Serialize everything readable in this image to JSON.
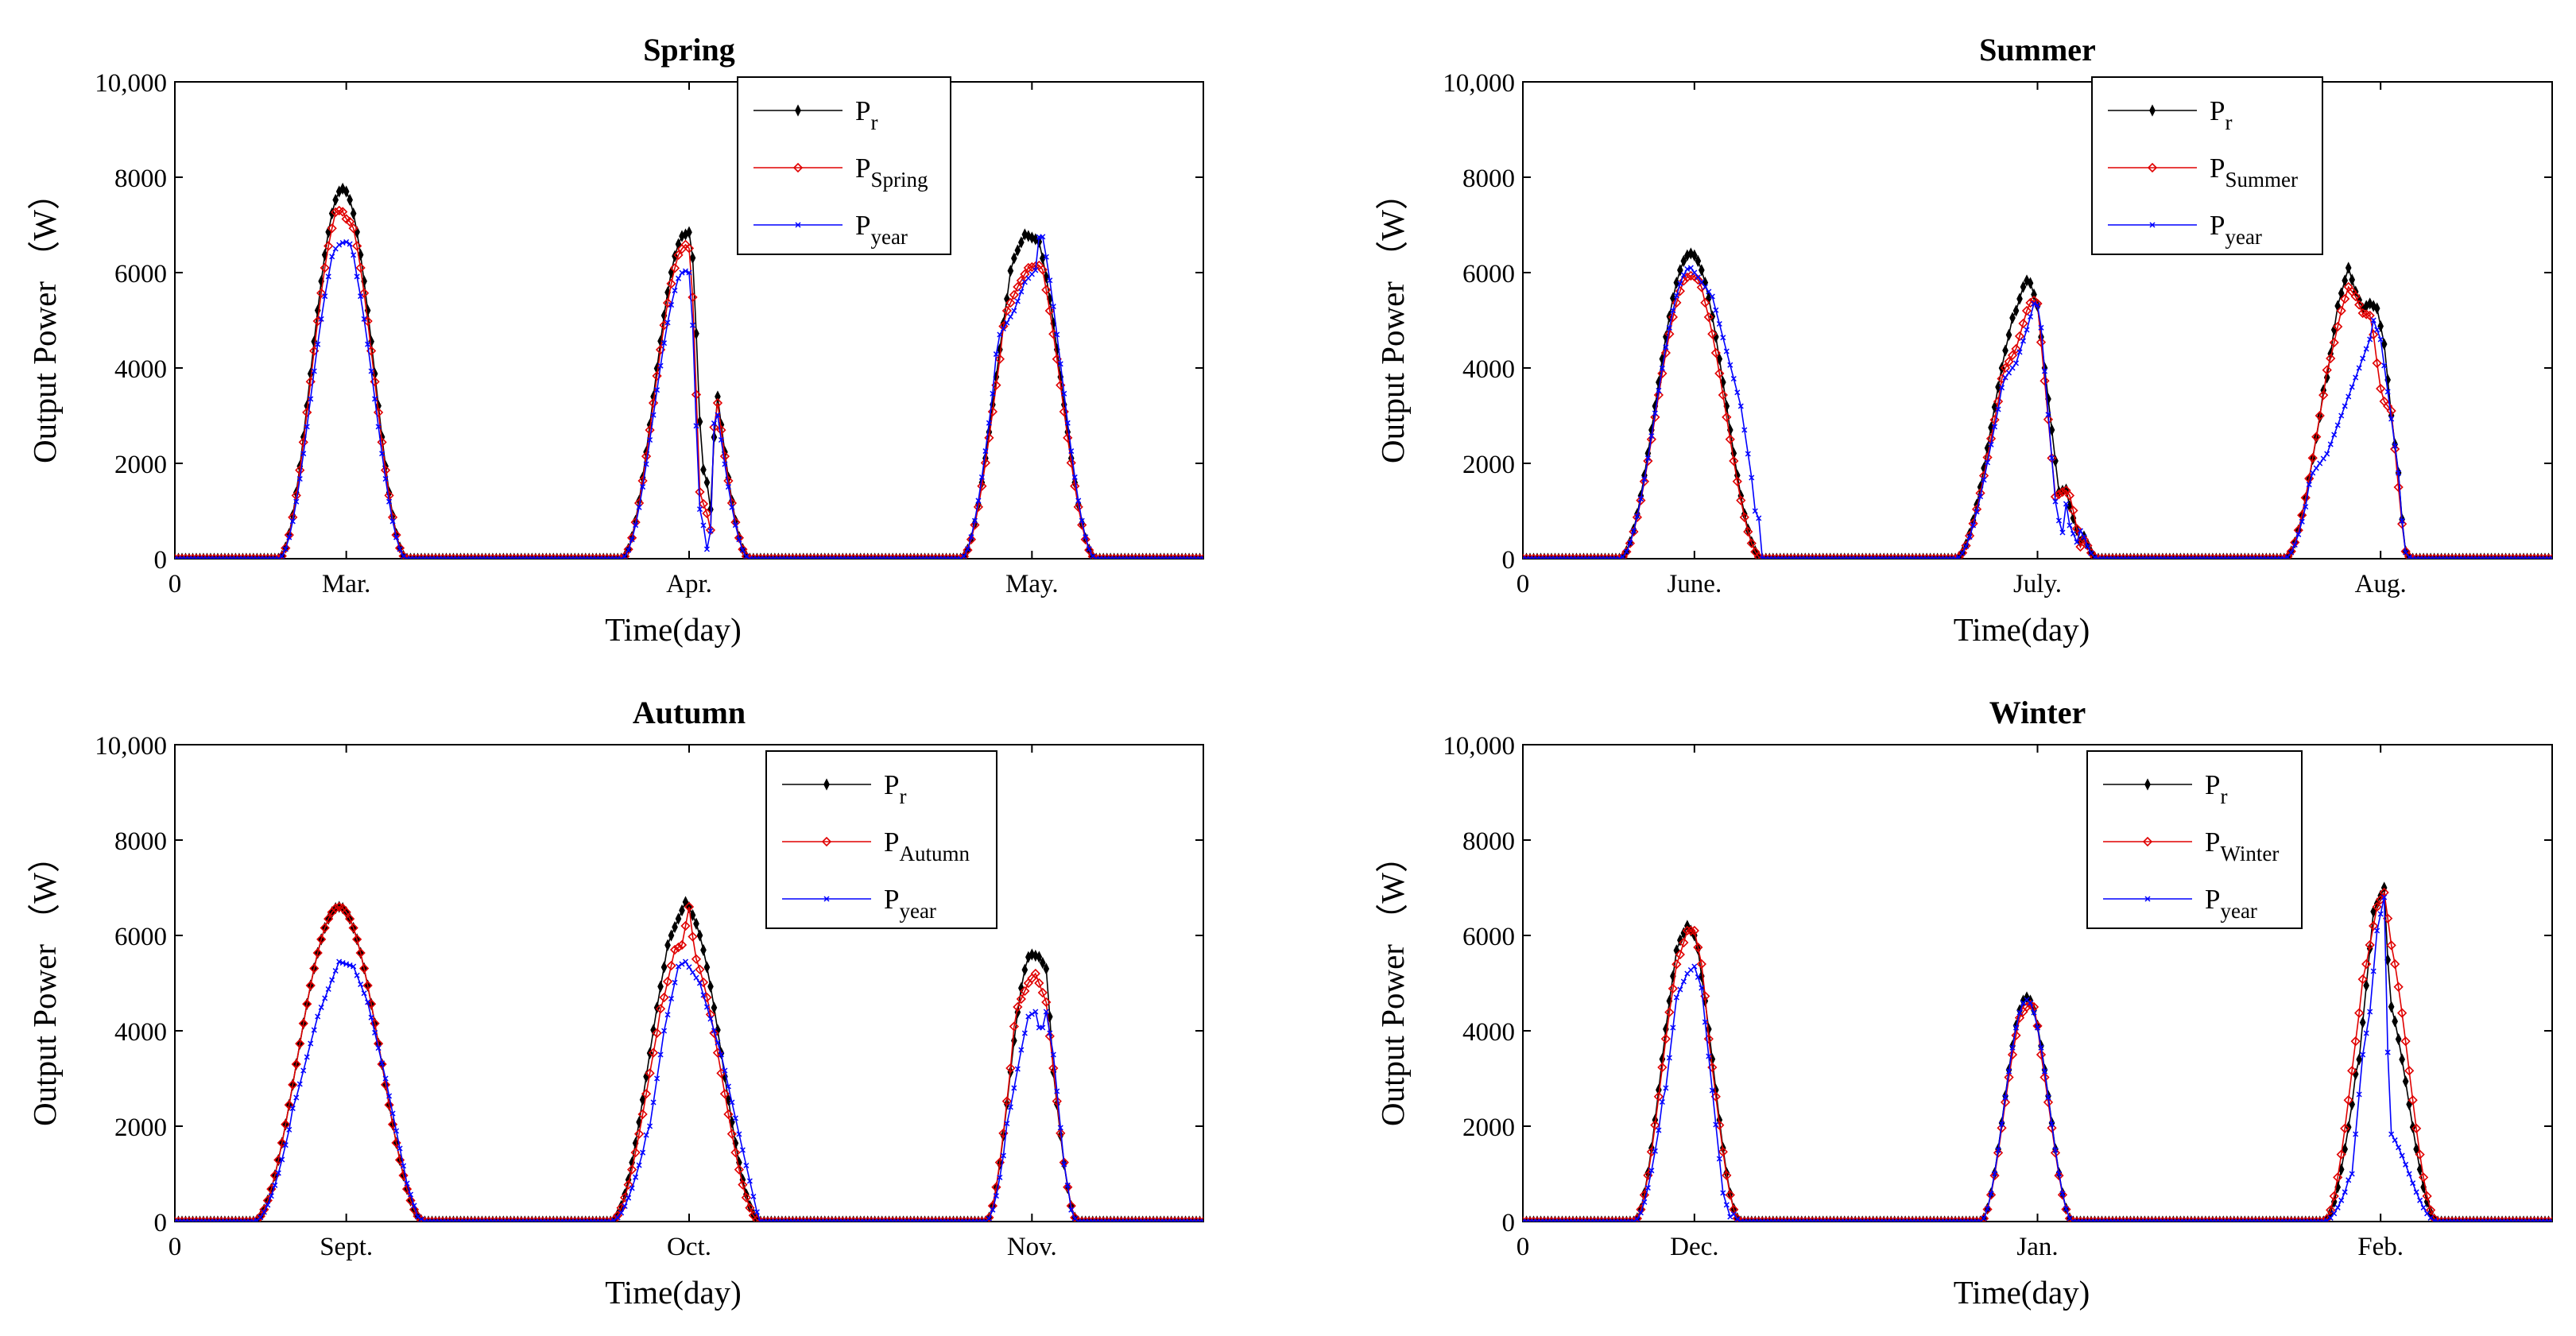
{
  "colors": {
    "pr": "#000000",
    "season": "#e00000",
    "year": "#0000ff"
  },
  "chart_data": [
    {
      "type": "line",
      "title": "Spring",
      "xlabel": "Time(day)",
      "ylabel": "Output Power （W）",
      "xlim": [
        0,
        288
      ],
      "ylim": [
        0,
        10000
      ],
      "yticks": [
        "0",
        "2000",
        "4000",
        "6000",
        "8000",
        "10,000"
      ],
      "xticks": [
        {
          "label": "0",
          "x": 0
        },
        {
          "label": "Mar.",
          "x": 48
        },
        {
          "label": "Apr.",
          "x": 144
        },
        {
          "label": "May.",
          "x": 240
        }
      ],
      "legend_position": "top-center",
      "legend": [
        {
          "main": "P",
          "sub": "r",
          "key": "pr"
        },
        {
          "main": "P",
          "sub": "Spring",
          "key": "season"
        },
        {
          "main": "P",
          "sub": "year",
          "key": "year"
        }
      ],
      "days": [
        {
          "center": 47,
          "width": 36,
          "pr": [
            [
              -1,
              7700
            ]
          ],
          "season": [
            [
              -1.5,
              7300
            ],
            [
              -0.5,
              7300
            ],
            [
              0.5,
              7250
            ],
            [
              1.5,
              7000
            ]
          ],
          "year": [
            [
              -2,
              6500
            ],
            [
              -0.8,
              6600
            ],
            [
              0.8,
              6650
            ],
            [
              2,
              6600
            ]
          ]
        },
        {
          "center": 143,
          "width": 36,
          "pr": [
            [
              0,
              6800
            ],
            [
              0.9,
              6900
            ],
            [
              2.2,
              6200
            ],
            [
              4.5,
              1950
            ],
            [
              5.4,
              1800
            ],
            [
              6.3,
              1500
            ],
            [
              7.2,
              900
            ]
          ],
          "season": [
            [
              -0.8,
              6500
            ],
            [
              0.6,
              6650
            ],
            [
              1.6,
              6300
            ],
            [
              4.0,
              1400
            ],
            [
              5.0,
              1150
            ],
            [
              6.0,
              950
            ],
            [
              7.0,
              600
            ]
          ],
          "year": [
            [
              -0.8,
              6000
            ],
            [
              0.5,
              6050
            ],
            [
              1.5,
              5950
            ],
            [
              3.8,
              1100
            ],
            [
              4.8,
              800
            ],
            [
              6.0,
              200
            ],
            [
              6.8,
              50
            ]
          ]
        },
        {
          "center": 239,
          "width": 38,
          "pr": [
            [
              -4,
              6300
            ],
            [
              -1,
              6800
            ],
            [
              2,
              6700
            ]
          ],
          "season": [
            [
              -6,
              5200
            ],
            [
              -3,
              5700
            ],
            [
              0,
              6100
            ],
            [
              3,
              6150
            ]
          ],
          "year": [
            [
              -8,
              4700
            ],
            [
              -6,
              4950
            ],
            [
              -4,
              5200
            ],
            [
              -1,
              5800
            ],
            [
              2,
              6050
            ]
          ]
        }
      ]
    },
    {
      "type": "line",
      "title": "Summer",
      "xlabel": "Time(day)",
      "ylabel": "Output Power （W）",
      "xlim": [
        0,
        288
      ],
      "ylim": [
        0,
        10000
      ],
      "yticks": [
        "0",
        "2000",
        "4000",
        "6000",
        "8000",
        "10,000"
      ],
      "xticks": [
        {
          "label": "0",
          "x": 0
        },
        {
          "label": "June.",
          "x": 48
        },
        {
          "label": "July.",
          "x": 144
        },
        {
          "label": "Aug.",
          "x": 240
        }
      ],
      "legend_position": "top-right",
      "legend": [
        {
          "main": "P",
          "sub": "r",
          "key": "pr"
        },
        {
          "main": "P",
          "sub": "Summer",
          "key": "season"
        },
        {
          "main": "P",
          "sub": "year",
          "key": "year"
        }
      ],
      "days": [
        {
          "center": 47,
          "width": 40,
          "pr": [
            [
              0,
              6400
            ]
          ],
          "season": [
            [
              -1,
              5900
            ],
            [
              0.5,
              5950
            ],
            [
              2,
              5850
            ]
          ],
          "year": [
            [
              0,
              6100
            ],
            [
              6,
              5500
            ],
            [
              14,
              3200
            ],
            [
              17,
              1700
            ],
            [
              18,
              1000
            ],
            [
              20,
              700
            ],
            [
              23,
              350
            ]
          ]
        },
        {
          "center": 141,
          "width": 40,
          "pr": [
            [
              -3,
              5200
            ],
            [
              -1,
              5700
            ],
            [
              0.5,
              5900
            ],
            [
              3,
              5300
            ],
            [
              9,
              1400
            ],
            [
              11,
              1450
            ],
            [
              12,
              1100
            ],
            [
              15,
              350
            ]
          ],
          "season": [
            [
              -6,
              4000
            ],
            [
              -3,
              4400
            ],
            [
              0,
              5200
            ],
            [
              1.5,
              5450
            ],
            [
              3,
              5350
            ],
            [
              8,
              1300
            ],
            [
              10,
              1400
            ],
            [
              11.5,
              1450
            ],
            [
              12.5,
              1200
            ],
            [
              15,
              250
            ]
          ],
          "year": [
            [
              -6,
              3800
            ],
            [
              -3,
              4100
            ],
            [
              0,
              4800
            ],
            [
              2,
              5350
            ],
            [
              3.5,
              5300
            ],
            [
              8,
              1200
            ],
            [
              9,
              800
            ],
            [
              10,
              550
            ],
            [
              11,
              1150
            ],
            [
              12,
              700
            ],
            [
              14,
              350
            ]
          ]
        },
        {
          "center": 231,
          "width": 36,
          "pr": [
            [
              -6,
              3800
            ],
            [
              -3,
              5300
            ],
            [
              0,
              6100
            ],
            [
              2,
              5600
            ],
            [
              4,
              5250
            ],
            [
              6,
              5350
            ],
            [
              8,
              5250
            ],
            [
              10,
              4500
            ],
            [
              12,
              3000
            ],
            [
              14,
              1800
            ]
          ],
          "season": [
            [
              -5,
              4200
            ],
            [
              -2,
              5200
            ],
            [
              0,
              5700
            ],
            [
              2,
              5500
            ],
            [
              4,
              5150
            ],
            [
              6,
              5100
            ],
            [
              7.5,
              4500
            ],
            [
              8.5,
              3700
            ],
            [
              10,
              3300
            ],
            [
              12,
              3100
            ],
            [
              14,
              1500
            ]
          ],
          "year": [
            [
              -10,
              1800
            ],
            [
              -6,
              2200
            ],
            [
              -3,
              2800
            ],
            [
              -1,
              3200
            ],
            [
              2,
              3800
            ],
            [
              4,
              4200
            ],
            [
              6,
              4600
            ],
            [
              7,
              5000
            ],
            [
              9,
              4600
            ],
            [
              11,
              3500
            ],
            [
              14,
              1800
            ]
          ]
        }
      ]
    },
    {
      "type": "line",
      "title": "Autumn",
      "xlabel": "Time(day)",
      "ylabel": "Output Power （W）",
      "xlim": [
        0,
        288
      ],
      "ylim": [
        0,
        10000
      ],
      "yticks": [
        "0",
        "2000",
        "4000",
        "6000",
        "8000",
        "10,000"
      ],
      "xticks": [
        {
          "label": "0",
          "x": 0
        },
        {
          "label": "Sept.",
          "x": 48
        },
        {
          "label": "Oct.",
          "x": 144
        },
        {
          "label": "Nov.",
          "x": 240
        }
      ],
      "legend_position": "top-right",
      "legend": [
        {
          "main": "P",
          "sub": "r",
          "key": "pr"
        },
        {
          "main": "P",
          "sub": "Autumn",
          "key": "season"
        },
        {
          "main": "P",
          "sub": "year",
          "key": "year"
        }
      ],
      "days": [
        {
          "center": 46,
          "width": 48,
          "pr": [
            [
              0,
              6600
            ]
          ],
          "season": [
            [
              0,
              6600
            ]
          ],
          "year": [
            [
              -12,
              2600
            ],
            [
              -6,
              4300
            ],
            [
              0,
              5450
            ],
            [
              4,
              5350
            ],
            [
              8,
              4600
            ],
            [
              13,
              3000
            ],
            [
              19,
              800
            ],
            [
              22,
              100
            ]
          ]
        },
        {
          "center": 143,
          "width": 42,
          "pr": [
            [
              -4,
              6000
            ],
            [
              0,
              6700
            ]
          ],
          "season": [
            [
              -6,
              4700
            ],
            [
              -3,
              5700
            ],
            [
              -1,
              5800
            ],
            [
              1,
              6600
            ]
          ],
          "year": [
            [
              -10,
              2000
            ],
            [
              -6,
              4000
            ],
            [
              -2,
              5350
            ],
            [
              0,
              5450
            ],
            [
              4,
              5000
            ],
            [
              10,
              3500
            ],
            [
              16,
              1500
            ],
            [
              20,
              200
            ]
          ]
        },
        {
          "center": 240,
          "width": 26,
          "pr": [
            [
              0,
              5600
            ],
            [
              2,
              5550
            ],
            [
              4,
              5300
            ]
          ],
          "season": [
            [
              -4,
              4500
            ],
            [
              -1,
              5000
            ],
            [
              1,
              5200
            ],
            [
              3,
              4800
            ]
          ],
          "year": [
            [
              -6,
              2400
            ],
            [
              -3,
              3600
            ],
            [
              -1,
              4300
            ],
            [
              1,
              4400
            ],
            [
              2.5,
              3900
            ],
            [
              4,
              4400
            ],
            [
              6,
              3500
            ],
            [
              9,
              1200
            ]
          ]
        }
      ]
    },
    {
      "type": "line",
      "title": "Winter",
      "xlabel": "Time(day)",
      "ylabel": "Output Power （W）",
      "xlim": [
        0,
        288
      ],
      "ylim": [
        0,
        10000
      ],
      "yticks": [
        "0",
        "2000",
        "4000",
        "6000",
        "8000",
        "10,000"
      ],
      "xticks": [
        {
          "label": "0",
          "x": 0
        },
        {
          "label": "Dec.",
          "x": 48
        },
        {
          "label": "Jan.",
          "x": 144
        },
        {
          "label": "Feb.",
          "x": 240
        }
      ],
      "legend_position": "top-right",
      "legend": [
        {
          "main": "P",
          "sub": "r",
          "key": "pr"
        },
        {
          "main": "P",
          "sub": "Winter",
          "key": "season"
        },
        {
          "main": "P",
          "sub": "year",
          "key": "year"
        }
      ],
      "days": [
        {
          "center": 46,
          "width": 30,
          "pr": [
            [
              -2,
              5900
            ],
            [
              0,
              6200
            ],
            [
              2,
              6000
            ]
          ],
          "season": [
            [
              -2,
              5600
            ],
            [
              0,
              6100
            ],
            [
              2,
              6100
            ],
            [
              4,
              5400
            ]
          ],
          "year": [
            [
              -6,
              2800
            ],
            [
              -3,
              4700
            ],
            [
              0,
              5200
            ],
            [
              2,
              5350
            ],
            [
              4,
              4900
            ],
            [
              10,
              600
            ],
            [
              12,
              100
            ]
          ]
        },
        {
          "center": 141,
          "width": 26,
          "pr": [
            [
              0,
              4700
            ]
          ],
          "season": [
            [
              -1,
              4400
            ],
            [
              0,
              4500
            ],
            [
              1,
              4550
            ],
            [
              2,
              4500
            ]
          ],
          "year": [
            [
              0,
              4650
            ]
          ]
        },
        {
          "center": 240,
          "width": 32,
          "pr": [
            [
              -6,
              3400
            ],
            [
              -2,
              6500
            ],
            [
              1,
              7000
            ]
          ],
          "season": [
            [
              -4,
              5400
            ],
            [
              -1,
              6600
            ],
            [
              1,
              6900
            ]
          ],
          "year": [
            [
              -8,
              1000
            ],
            [
              -5,
              3500
            ],
            [
              -3,
              4400
            ],
            [
              -1,
              6100
            ],
            [
              1,
              6800
            ]
          ]
        }
      ]
    }
  ]
}
